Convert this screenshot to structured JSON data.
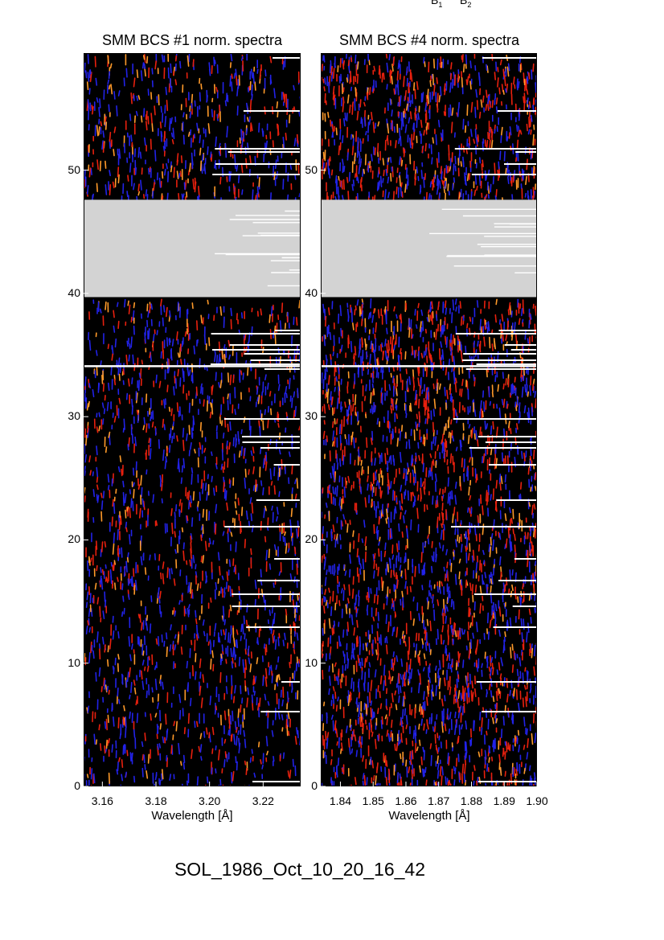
{
  "header_labels": {
    "b1": "B",
    "b1_sub": "1",
    "b2": "B",
    "b2_sub": "2"
  },
  "footer_text": "SOL_1986_Oct_10_20_16_42",
  "colors": {
    "background": "#000000",
    "red": "#e8200e",
    "orange": "#ff9a2a",
    "blue": "#2222e8",
    "gap": "#d3d3d3",
    "white_lines": "#ffffff"
  },
  "chart_data": [
    {
      "type": "heatmap",
      "title": "SMM BCS #1 norm. spectra",
      "xlabel": "Wavelength [Å]",
      "ylabel": "",
      "xlim": [
        3.153,
        3.234
      ],
      "ylim": [
        0,
        59.5
      ],
      "xticks": [
        "3.16",
        "3.18",
        "3.20",
        "3.22"
      ],
      "xtick_values": [
        3.16,
        3.18,
        3.2,
        3.22
      ],
      "yticks": [
        "0",
        "10",
        "20",
        "30",
        "40",
        "50"
      ],
      "ytick_values": [
        0,
        10,
        20,
        30,
        40,
        50
      ],
      "data_gap": [
        39.7,
        47.6
      ],
      "saturated_rows": [
        34.1
      ],
      "red_intensity": 0.45
    },
    {
      "type": "heatmap",
      "title": "SMM BCS #4 norm. spectra",
      "xlabel": "Wavelength [Å]",
      "ylabel": "",
      "xlim": [
        1.834,
        1.9
      ],
      "ylim": [
        0,
        59.5
      ],
      "xticks": [
        "1.84",
        "1.85",
        "1.86",
        "1.87",
        "1.88",
        "1.89",
        "1.90"
      ],
      "xtick_values": [
        1.84,
        1.85,
        1.86,
        1.87,
        1.88,
        1.89,
        1.9
      ],
      "yticks": [
        "0",
        "10",
        "20",
        "30",
        "40",
        "50"
      ],
      "ytick_values": [
        0,
        10,
        20,
        30,
        40,
        50
      ],
      "data_gap": [
        39.7,
        47.6
      ],
      "saturated_rows": [
        34.1
      ],
      "red_intensity": 0.75
    }
  ]
}
